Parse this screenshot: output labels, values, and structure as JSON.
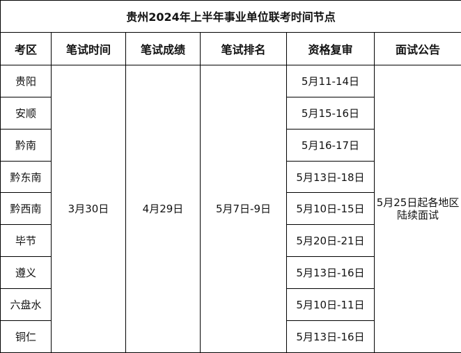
{
  "title": "贵州2024年上半年事业单位联考时间节点",
  "headers": [
    "考区",
    "笔试时间",
    "笔试成绩",
    "笔试排名",
    "资格复审",
    "面试公告"
  ],
  "regions": [
    "贵阳",
    "安顺",
    "黔南",
    "黔东南",
    "黔西南",
    "毕节",
    "遵义",
    "六盘水",
    "铜仁"
  ],
  "written_exam_date": "3月30日",
  "score_release": "4月29日",
  "ranking": "5月7日-9日",
  "qualification_review": [
    "5月11-14日",
    "5月15-16日",
    "5月16-17日",
    "5月13日-18日",
    "5月10日-15日",
    "5月20日-21日",
    "5月13日-16日",
    "5月10日-11日",
    "5月13日-16日"
  ],
  "interview_notice": [
    "5月25日起各地区",
    "陆续面试"
  ]
}
